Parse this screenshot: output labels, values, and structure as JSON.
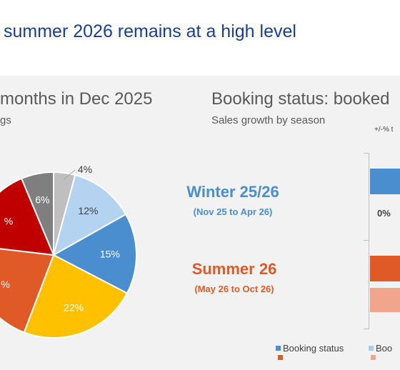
{
  "header": {
    "title": "summer 2026 remains at a high level"
  },
  "left_panel": {
    "title": "months in Dec 2025",
    "subtitle": "gs"
  },
  "right_panel": {
    "title": "Booking status: booked",
    "subtitle": "Sales growth by season",
    "axis_note": "+/-% t",
    "zero_label": "0%"
  },
  "seasons": [
    {
      "name": "Winter 25/26",
      "range": "(Nov 25 to Apr 26)",
      "color": "#4a8ed0"
    },
    {
      "name": "Summer 26",
      "range": "(May 26 to Oct 26)",
      "color": "#e05a27"
    }
  ],
  "legend": {
    "item1": "Booking status",
    "item2": "Boo"
  },
  "colors": {
    "winter_bar": "#4a8ed0",
    "summer_bar": "#e05a27",
    "summer_bar_light": "#f0a58c",
    "legend_light": "#a9cdee",
    "header_text": "#1a3f8f"
  },
  "chart_data": {
    "type": "pie",
    "slices": [
      {
        "label": "4%",
        "value": 4,
        "color": "#bfbfbf"
      },
      {
        "label": "12%",
        "value": 12,
        "color": "#b4d3f0"
      },
      {
        "label": "15%",
        "value": 15,
        "color": "#4a8ed0"
      },
      {
        "label": "22%",
        "value": 22,
        "color": "#ffc000"
      },
      {
        "label": "%",
        "value": 20,
        "color": "#e05a27"
      },
      {
        "label": "%",
        "value": 16,
        "color": "#c00000"
      },
      {
        "label": "6%",
        "value": 6,
        "color": "#7f7f7f"
      }
    ]
  }
}
